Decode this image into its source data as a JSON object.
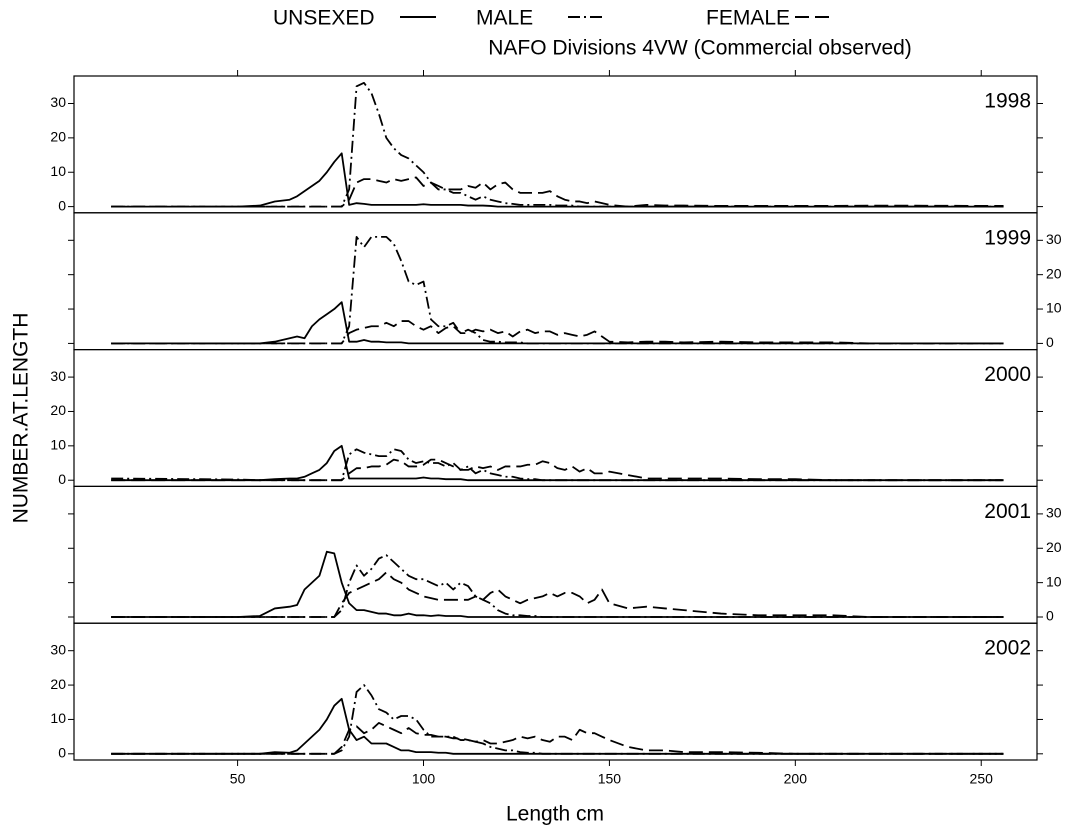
{
  "chart_data": {
    "type": "line",
    "title": "NAFO Divisions 4VW (Commercial observed)",
    "xlabel": "Length cm",
    "ylabel": "NUMBER.AT.LENGTH",
    "xlim": [
      6,
      265
    ],
    "xticks": [
      50,
      100,
      150,
      200,
      250
    ],
    "ylim": [
      -1.8,
      38
    ],
    "yticks": [
      0,
      10,
      20,
      30
    ],
    "series": [
      {
        "name": "UNSEXED",
        "color": "#000000",
        "linestyle": "solid"
      },
      {
        "name": "MALE",
        "color": "#000000",
        "linestyle": "dashdot"
      },
      {
        "name": "FEMALE",
        "color": "#000000",
        "linestyle": "dashed"
      }
    ],
    "x": [
      16,
      40,
      50,
      56,
      60,
      64,
      66,
      68,
      70,
      72,
      74,
      76,
      78,
      80,
      82,
      84,
      86,
      88,
      90,
      92,
      94,
      96,
      98,
      100,
      102,
      104,
      106,
      108,
      110,
      112,
      114,
      116,
      118,
      120,
      122,
      124,
      126,
      128,
      130,
      132,
      134,
      136,
      138,
      140,
      142,
      144,
      146,
      148,
      150,
      155,
      160,
      165,
      170,
      180,
      190,
      200,
      210,
      220,
      256
    ],
    "panels": [
      {
        "label": "1998",
        "values": [
          [
            0,
            0,
            0,
            0.3,
            1.5,
            2,
            3,
            4.5,
            6,
            7.5,
            10,
            13,
            15.5,
            0.5,
            1,
            0.8,
            0.5,
            0.5,
            0.5,
            0.5,
            0.5,
            0.5,
            0.5,
            0.7,
            0.5,
            0.5,
            0.5,
            0.5,
            0.5,
            0.3,
            0.3,
            0.3,
            0.2,
            0,
            0,
            0,
            0,
            0,
            0,
            0,
            0,
            0,
            0,
            0,
            0,
            0,
            0,
            0,
            0,
            0,
            0,
            0,
            0,
            0,
            0,
            0,
            0,
            0,
            0
          ],
          [
            0,
            0,
            0,
            0,
            0,
            0,
            0,
            0,
            0,
            0,
            0,
            0,
            0,
            5,
            35,
            36,
            33,
            27,
            20,
            17,
            15,
            14,
            12,
            10,
            7,
            5,
            5,
            4,
            4,
            3,
            2,
            3,
            2,
            1.5,
            1,
            0.8,
            0.5,
            0.5,
            0.5,
            0.5,
            0.5,
            0.3,
            0.3,
            0.3,
            0,
            0,
            0,
            0,
            0,
            0,
            0,
            0,
            0,
            0,
            0,
            0,
            0,
            0,
            0
          ],
          [
            0,
            0,
            0,
            0,
            0,
            0,
            0,
            0,
            0,
            0,
            0,
            0,
            0,
            2,
            7,
            8,
            8,
            7.5,
            7,
            8,
            7.5,
            8,
            8.5,
            6,
            7,
            6,
            5,
            5,
            5,
            6,
            5.5,
            7,
            5,
            6.5,
            7,
            5,
            4,
            4,
            4,
            4,
            4.5,
            3,
            2,
            1.5,
            1.5,
            1,
            1.5,
            1,
            0.5,
            0,
            0.5,
            0.3,
            0.3,
            0.2,
            0.2,
            0.2,
            0.2,
            0.3,
            0.2
          ]
        ]
      },
      {
        "label": "1999",
        "values": [
          [
            0,
            0,
            0,
            0,
            0.5,
            1.5,
            2,
            1.5,
            5,
            7,
            8.5,
            10,
            12,
            0.5,
            0.5,
            1,
            0.5,
            0.5,
            0.3,
            0.3,
            0.3,
            0,
            0,
            0,
            0,
            0,
            0,
            0,
            0,
            0,
            0,
            0,
            0,
            0,
            0,
            0,
            0,
            0,
            0,
            0,
            0,
            0,
            0,
            0,
            0,
            0,
            0,
            0,
            0,
            0,
            0,
            0,
            0,
            0,
            0,
            0,
            0,
            0,
            0
          ],
          [
            0,
            0,
            0,
            0,
            0,
            0,
            0,
            0,
            0,
            0,
            0,
            0,
            0,
            5,
            31,
            28,
            31,
            31,
            31,
            29,
            24,
            18,
            17,
            18,
            7,
            5,
            5,
            6,
            3,
            4,
            3,
            1,
            0.5,
            0.5,
            0.3,
            0.3,
            0.3,
            0,
            0,
            0,
            0,
            0,
            0,
            0,
            0,
            0,
            0,
            0,
            0,
            0,
            0,
            0,
            0,
            0,
            0,
            0,
            0,
            0,
            0
          ],
          [
            0,
            0,
            0,
            0,
            0,
            0,
            0,
            0,
            0,
            0,
            0,
            0,
            0,
            3,
            4,
            4.5,
            5,
            5,
            6,
            5,
            6.5,
            6.5,
            5,
            4,
            5,
            3,
            4.5,
            5,
            3,
            3,
            4,
            3.5,
            4,
            3,
            3.5,
            2,
            3.5,
            4,
            3,
            3.5,
            3.5,
            2.5,
            3,
            2.5,
            2,
            2.5,
            3.5,
            2,
            0.5,
            0.3,
            0.5,
            0.5,
            0.3,
            0.5,
            0.3,
            0.3,
            0.3,
            0,
            0
          ]
        ]
      },
      {
        "label": "2000",
        "values": [
          [
            0,
            0,
            0,
            0,
            0.3,
            0.5,
            0.5,
            1,
            2,
            3,
            5,
            8.5,
            10,
            0.5,
            0.5,
            0.5,
            0.5,
            0.5,
            0.5,
            0.5,
            0.5,
            0.5,
            0.5,
            0.8,
            0.5,
            0.5,
            0.3,
            0.3,
            0.3,
            0,
            0,
            0,
            0,
            0,
            0,
            0,
            0,
            0,
            0,
            0,
            0,
            0,
            0,
            0,
            0,
            0,
            0,
            0,
            0,
            0,
            0,
            0,
            0,
            0,
            0,
            0,
            0,
            0,
            0
          ],
          [
            0.5,
            0.3,
            0.2,
            0,
            0,
            0,
            0,
            0,
            0,
            0,
            0,
            0,
            0,
            7.5,
            9,
            8,
            7.5,
            7,
            7,
            9,
            8.5,
            6,
            5,
            5.5,
            5,
            5,
            4,
            5,
            3,
            4,
            2,
            3,
            2,
            1.5,
            1,
            1,
            0.5,
            0.3,
            0.3,
            0,
            0,
            0,
            0,
            0,
            0,
            0,
            0,
            0,
            0,
            0,
            0,
            0,
            0,
            0,
            0,
            0,
            0,
            0,
            0
          ],
          [
            0,
            0,
            0,
            0,
            0,
            0,
            0,
            0,
            0,
            0,
            0,
            0,
            0,
            2,
            3.5,
            3.5,
            4,
            4,
            4.5,
            6,
            5.5,
            4,
            4,
            4.5,
            6,
            6,
            5,
            4,
            3,
            3,
            4,
            3.5,
            4,
            3,
            4,
            4,
            4,
            4.5,
            4.5,
            5.5,
            5,
            3.5,
            3,
            4,
            2.5,
            3.5,
            2,
            2,
            2.5,
            1.5,
            0.5,
            0.5,
            0.5,
            0.5,
            0.3,
            0.3,
            0,
            0,
            0
          ]
        ]
      },
      {
        "label": "2001",
        "values": [
          [
            0,
            0,
            0,
            0.3,
            2.5,
            3,
            3.5,
            8,
            10,
            12,
            19,
            18.5,
            10,
            4,
            2,
            2,
            1.5,
            1,
            1,
            0.5,
            0.5,
            1,
            0.5,
            0.5,
            0.3,
            0.5,
            0.3,
            0.3,
            0.3,
            0,
            0,
            0,
            0,
            0,
            0,
            0,
            0,
            0,
            0,
            0,
            0,
            0,
            0,
            0,
            0,
            0,
            0,
            0,
            0,
            0,
            0,
            0,
            0,
            0,
            0,
            0,
            0,
            0,
            0
          ],
          [
            0,
            0,
            0,
            0,
            0,
            0,
            0,
            0,
            0,
            0,
            0,
            0,
            2,
            10,
            15,
            12,
            14,
            17,
            18,
            16,
            14,
            12,
            11,
            11,
            10,
            9,
            10,
            8,
            10,
            9,
            6,
            5,
            4,
            2,
            1,
            0.5,
            0.5,
            0.3,
            0.3,
            0,
            0,
            0,
            0,
            0,
            0,
            0,
            0,
            0,
            0,
            0,
            0,
            0,
            0,
            0,
            0,
            0,
            0,
            0,
            0
          ],
          [
            0,
            0,
            0,
            0,
            0,
            0,
            0,
            0,
            0,
            0,
            0,
            0,
            4,
            7,
            8,
            9,
            10,
            11,
            13,
            11,
            10,
            8,
            7,
            6,
            5.5,
            5,
            5,
            5,
            5,
            5,
            6,
            5,
            7,
            8,
            6,
            5,
            4,
            5,
            5.5,
            6,
            7,
            6,
            7,
            7,
            6,
            4,
            5,
            8,
            4,
            2.5,
            3,
            2.5,
            2,
            1,
            0.5,
            0.5,
            0.5,
            0,
            0
          ]
        ]
      },
      {
        "label": "2002",
        "values": [
          [
            0,
            0,
            0,
            0,
            0.5,
            0.3,
            1,
            3,
            5,
            7,
            10,
            14,
            16,
            7,
            4,
            5,
            3,
            3,
            3,
            2,
            1,
            1,
            0.5,
            0.5,
            0.5,
            0.3,
            0.3,
            0,
            0,
            0,
            0,
            0,
            0,
            0,
            0,
            0,
            0,
            0,
            0,
            0,
            0,
            0,
            0,
            0,
            0,
            0,
            0,
            0,
            0,
            0,
            0,
            0,
            0,
            0,
            0,
            0,
            0,
            0,
            0
          ],
          [
            0,
            0,
            0,
            0,
            0,
            0,
            0,
            0,
            0,
            0,
            0,
            0,
            1,
            5,
            18,
            20,
            17,
            13,
            12,
            10,
            11,
            11,
            10,
            7,
            5,
            5,
            5,
            5,
            4,
            4,
            3.5,
            3,
            2,
            1.5,
            1,
            1,
            0.5,
            0.3,
            0.3,
            0,
            0,
            0,
            0,
            0,
            0,
            0,
            0,
            0,
            0,
            0,
            0,
            0,
            0,
            0,
            0,
            0,
            0,
            0,
            0
          ],
          [
            0,
            0,
            0,
            0,
            0,
            0,
            0,
            0,
            0,
            0,
            0,
            0,
            2,
            7,
            8,
            6,
            7,
            9,
            8,
            7,
            6,
            7.5,
            6,
            5.5,
            5.5,
            5,
            5,
            4.5,
            4.5,
            4,
            3.5,
            4,
            3,
            3,
            3.5,
            4,
            5,
            4.5,
            5,
            4,
            3.5,
            5,
            5,
            4,
            7,
            6,
            6,
            5,
            4,
            2,
            1,
            1,
            0.5,
            0.5,
            0.3,
            0,
            0,
            0,
            0
          ]
        ]
      }
    ]
  }
}
